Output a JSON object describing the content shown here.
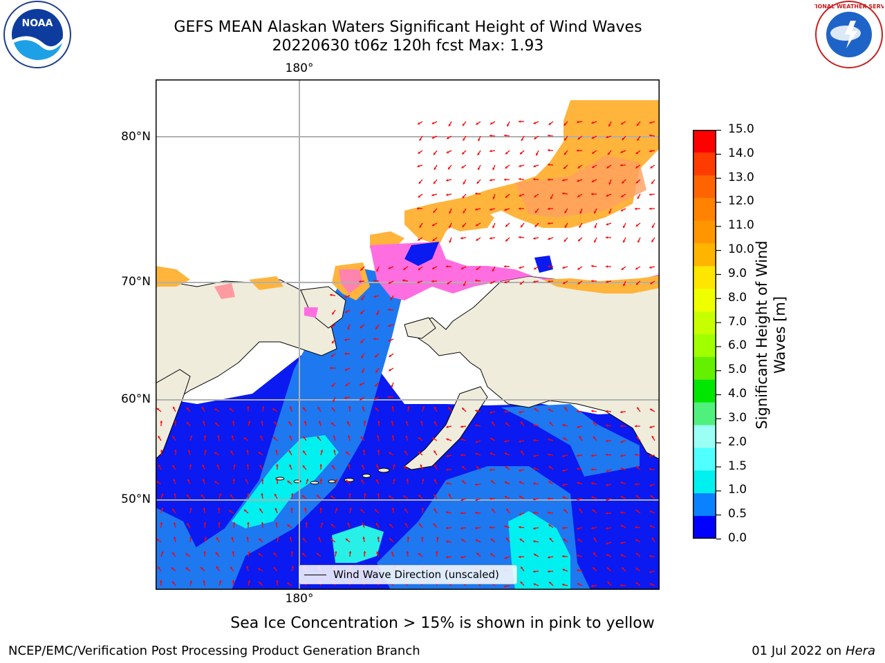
{
  "title": {
    "line1": "GEFS MEAN Alaskan Waters Significant Height of Wind Waves",
    "line2": "20220630 t06z 120h fcst   Max: 1.93"
  },
  "logos": {
    "left": "NOAA",
    "right": "NATIONAL WEATHER SERVICE"
  },
  "map": {
    "lon_label_top": "180°",
    "lon_label_bottom": "180°",
    "lat_labels": [
      "80°N",
      "70°N",
      "60°N",
      "50°N"
    ],
    "legend_label": "Wind Wave Direction (unscaled)",
    "colors": {
      "land": "#efecdc",
      "ocean_low": "#0a1af0",
      "ocean_mid": "#1e78f0",
      "ocean_high": "#00e6e6",
      "ice_pink": "#ff6ee0",
      "ice_orange": "#ffb43c",
      "arrow": "#ff0000"
    }
  },
  "colorbar": {
    "label": "Significant Height of Wind Waves [m]",
    "label_line1": "Significant Height of Wind",
    "label_line2": "Waves [m]",
    "ticks": [
      "15.0",
      "14.0",
      "13.0",
      "12.0",
      "11.0",
      "10.0",
      "9.0",
      "8.0",
      "7.0",
      "6.0",
      "5.0",
      "4.0",
      "3.0",
      "2.0",
      "1.5",
      "1.0",
      "0.5",
      "0.0"
    ],
    "colors_top_to_bottom": [
      "#ff0000",
      "#ff3c00",
      "#ff6400",
      "#ff8200",
      "#ff9600",
      "#ffb400",
      "#ffe600",
      "#f0ff00",
      "#c8ff00",
      "#a0ff00",
      "#64f000",
      "#00e600",
      "#50f07d",
      "#9bfff5",
      "#50ffff",
      "#00f0f0",
      "#0a82ff",
      "#0000ff"
    ]
  },
  "footer": {
    "note": "Sea Ice Concentration > 15% is shown in pink to yellow",
    "left": "NCEP/EMC/Verification Post Processing Product Generation Branch",
    "right_date": "01 Jul 2022 on ",
    "right_machine": "Hera"
  }
}
